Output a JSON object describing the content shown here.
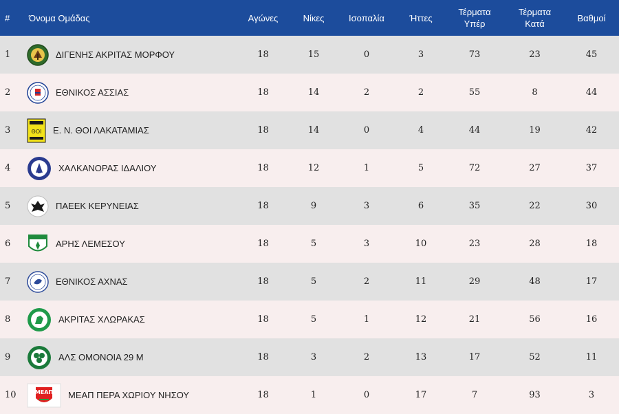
{
  "header": {
    "rank": "#",
    "team": "Όνομα Ομάδας",
    "played": "Αγώνες",
    "wins": "Νίκες",
    "draws": "Ισοπαλία",
    "losses": "Ήττες",
    "goals_for_line1": "Τέρματα",
    "goals_for_line2": "Υπέρ",
    "goals_against_line1": "Τέρματα",
    "goals_against_line2": "Κατά",
    "points": "Βαθμοί"
  },
  "rows": [
    {
      "rank": "1",
      "team": "ΔΙΓΕΝΗΣ ΑΚΡΙΤΑΣ ΜΟΡΦΟΥ",
      "logo": "digenis-morfou-logo-icon",
      "played": "18",
      "wins": "15",
      "draws": "0",
      "losses": "3",
      "gf": "73",
      "ga": "23",
      "pts": "45"
    },
    {
      "rank": "2",
      "team": "ΕΘΝΙΚΟΣ ΑΣΣΙΑΣ",
      "logo": "ethnikos-assias-logo-icon",
      "played": "18",
      "wins": "14",
      "draws": "2",
      "losses": "2",
      "gf": "55",
      "ga": "8",
      "pts": "44"
    },
    {
      "rank": "3",
      "team": "Ε. Ν. ΘΟΙ ΛΑΚΑΤΑΜΙΑΣ",
      "logo": "thoi-lakatamias-logo-icon",
      "played": "18",
      "wins": "14",
      "draws": "0",
      "losses": "4",
      "gf": "44",
      "ga": "19",
      "pts": "42"
    },
    {
      "rank": "4",
      "team": "ΧΑΛΚΑΝΟΡΑΣ ΙΔΑΛΙΟΥ",
      "logo": "chalkanoras-idaliou-logo-icon",
      "played": "18",
      "wins": "12",
      "draws": "1",
      "losses": "5",
      "gf": "72",
      "ga": "27",
      "pts": "37"
    },
    {
      "rank": "5",
      "team": "ΠΑΕΕΚ ΚΕΡΥΝΕΙΑΣ",
      "logo": "paeek-kerynias-logo-icon",
      "played": "18",
      "wins": "9",
      "draws": "3",
      "losses": "6",
      "gf": "35",
      "ga": "22",
      "pts": "30"
    },
    {
      "rank": "6",
      "team": "ΑΡΗΣ ΛΕΜΕΣΟΥ",
      "logo": "aris-lemesou-logo-icon",
      "played": "18",
      "wins": "5",
      "draws": "3",
      "losses": "10",
      "gf": "23",
      "ga": "28",
      "pts": "18"
    },
    {
      "rank": "7",
      "team": "ΕΘΝΙΚΟΣ ΑΧΝΑΣ",
      "logo": "ethnikos-achnas-logo-icon",
      "played": "18",
      "wins": "5",
      "draws": "2",
      "losses": "11",
      "gf": "29",
      "ga": "48",
      "pts": "17"
    },
    {
      "rank": "8",
      "team": "ΑΚΡΙΤΑΣ ΧΛΩΡΑΚΑΣ",
      "logo": "akritas-chloraka-logo-icon",
      "played": "18",
      "wins": "5",
      "draws": "1",
      "losses": "12",
      "gf": "21",
      "ga": "56",
      "pts": "16"
    },
    {
      "rank": "9",
      "team": "ΑΛΣ ΟΜΟΝΟΙΑ 29 Μ",
      "logo": "als-omonoia-logo-icon",
      "played": "18",
      "wins": "3",
      "draws": "2",
      "losses": "13",
      "gf": "17",
      "ga": "52",
      "pts": "11"
    },
    {
      "rank": "10",
      "team": "ΜΕΑΠ ΠΕΡΑ ΧΩΡΙΟΥ ΝΗΣΟΥ",
      "logo": "meap-logo-icon",
      "logo_text": "ΜΕΑΠ",
      "played": "18",
      "wins": "1",
      "draws": "0",
      "losses": "17",
      "gf": "7",
      "ga": "93",
      "pts": "3"
    }
  ],
  "colors": {
    "header_bg": "#1c4c9c",
    "row_odd": "#e1e1e1",
    "row_even": "#f8eeee"
  }
}
